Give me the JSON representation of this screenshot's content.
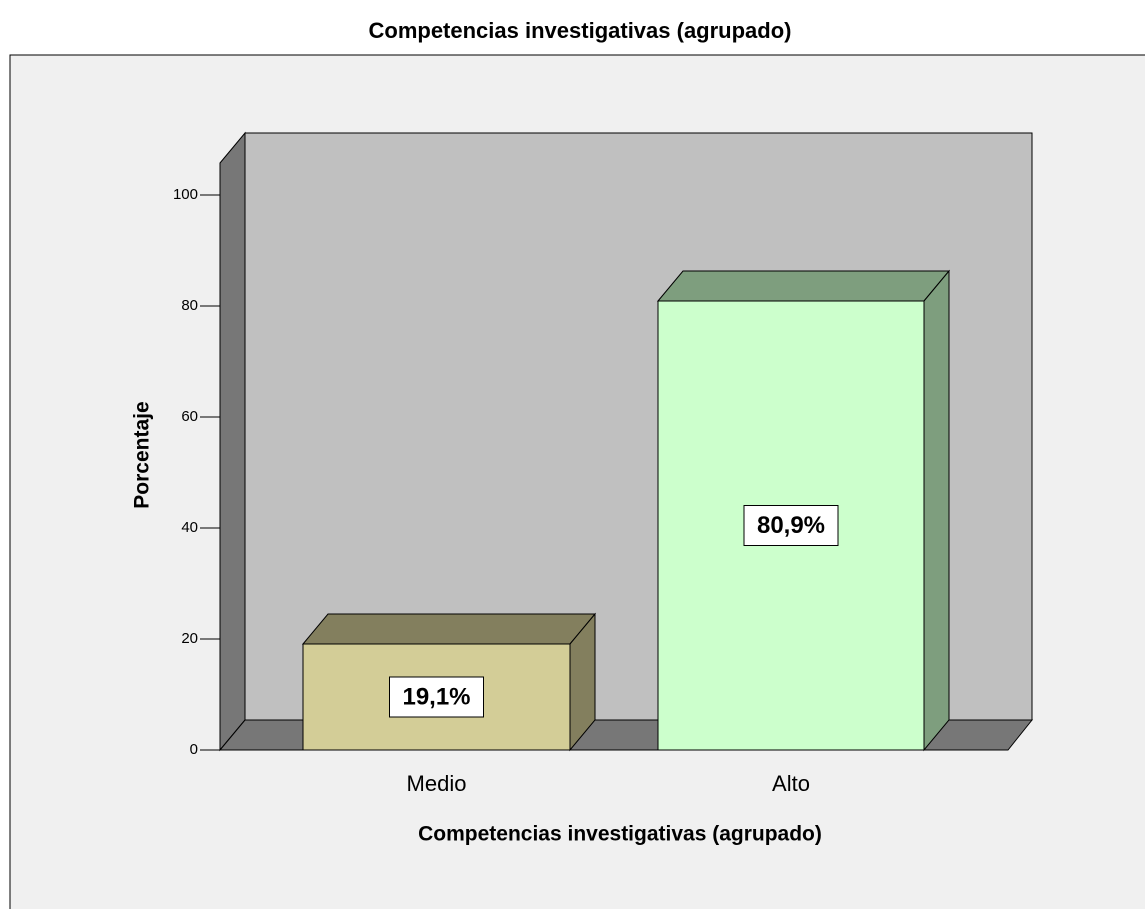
{
  "chart_data": {
    "type": "bar3d",
    "title": "Competencias investigativas (agrupado)",
    "x_label": "Competencias investigativas (agrupado)",
    "y_label": "Porcentaje",
    "categories": [
      "Medio",
      "Alto"
    ],
    "values": [
      19.1,
      80.9
    ],
    "value_labels": [
      "19,1%",
      "80,9%"
    ],
    "colors": [
      "#d3cd97",
      "#ccffcc"
    ],
    "ylim": [
      0,
      106
    ],
    "yticks": [
      0,
      20,
      40,
      60,
      80,
      100
    ]
  }
}
